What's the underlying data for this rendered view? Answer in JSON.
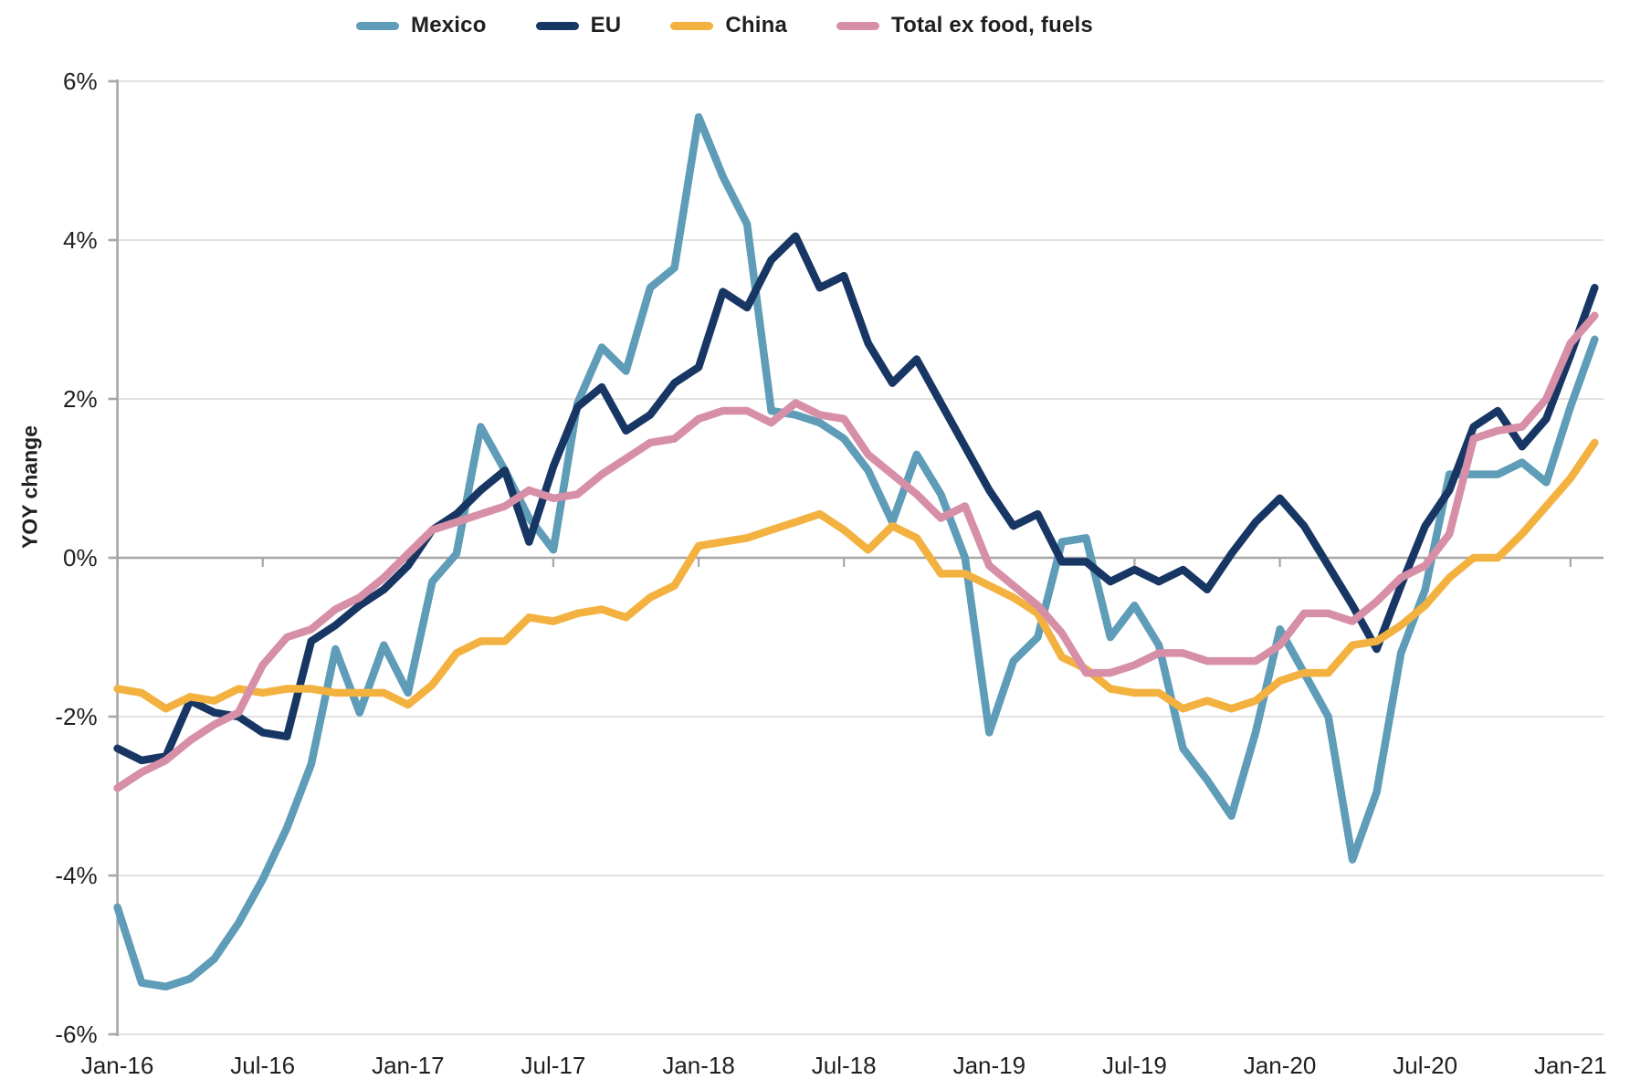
{
  "y_axis_title": "YOY change",
  "legend": {
    "items": [
      {
        "label": "Mexico",
        "color": "#5E9CB8"
      },
      {
        "label": "EU",
        "color": "#173663"
      },
      {
        "label": "China",
        "color": "#F3B13F"
      },
      {
        "label": "Total ex food, fuels",
        "color": "#D78FA8"
      }
    ]
  },
  "chart_data": {
    "type": "line",
    "title": "",
    "xlabel": "",
    "ylabel": "YOY change",
    "ylim": [
      -6,
      6
    ],
    "y_tick_step": 2,
    "y_tick_labels": [
      "6%",
      "4%",
      "2%",
      "0%",
      "-2%",
      "-4%",
      "-6%"
    ],
    "x_tick_labels": [
      "Jan-16",
      "Jul-16",
      "Jan-17",
      "Jul-17",
      "Jan-18",
      "Jul-18",
      "Jan-19",
      "Jul-19",
      "Jan-20",
      "Jul-20",
      "Jan-21"
    ],
    "grid": true,
    "legend_position": "top",
    "x": [
      "Jan-16",
      "Feb-16",
      "Mar-16",
      "Apr-16",
      "May-16",
      "Jun-16",
      "Jul-16",
      "Aug-16",
      "Sep-16",
      "Oct-16",
      "Nov-16",
      "Dec-16",
      "Jan-17",
      "Feb-17",
      "Mar-17",
      "Apr-17",
      "May-17",
      "Jun-17",
      "Jul-17",
      "Aug-17",
      "Sep-17",
      "Oct-17",
      "Nov-17",
      "Dec-17",
      "Jan-18",
      "Feb-18",
      "Mar-18",
      "Apr-18",
      "May-18",
      "Jun-18",
      "Jul-18",
      "Aug-18",
      "Sep-18",
      "Oct-18",
      "Nov-18",
      "Dec-18",
      "Jan-19",
      "Feb-19",
      "Mar-19",
      "Apr-19",
      "May-19",
      "Jun-19",
      "Jul-19",
      "Aug-19",
      "Sep-19",
      "Oct-19",
      "Nov-19",
      "Dec-19",
      "Jan-20",
      "Feb-20",
      "Mar-20",
      "Apr-20",
      "May-20",
      "Jun-20",
      "Jul-20",
      "Aug-20",
      "Sep-20",
      "Oct-20",
      "Nov-20",
      "Dec-20",
      "Jan-21",
      "Feb-21"
    ],
    "series": [
      {
        "name": "Mexico",
        "color": "#5E9CB8",
        "values": [
          -4.4,
          -5.35,
          -5.4,
          -5.3,
          -5.05,
          -4.6,
          -4.05,
          -3.4,
          -2.6,
          -1.15,
          -1.95,
          -1.1,
          -1.7,
          -0.3,
          0.05,
          1.65,
          1.1,
          0.5,
          0.1,
          1.95,
          2.65,
          2.35,
          3.4,
          3.65,
          5.55,
          4.8,
          4.2,
          1.85,
          1.8,
          1.7,
          1.5,
          1.1,
          0.45,
          1.3,
          0.8,
          0.0,
          -2.2,
          -1.3,
          -1.0,
          0.2,
          0.25,
          -1.0,
          -0.6,
          -1.1,
          -2.4,
          -2.8,
          -3.25,
          -2.2,
          -0.9,
          -1.45,
          -2.0,
          -3.8,
          -2.95,
          -1.2,
          -0.4,
          1.05,
          1.05,
          1.05,
          1.2,
          0.95,
          1.9,
          2.75
        ]
      },
      {
        "name": "EU",
        "color": "#173663",
        "values": [
          -2.4,
          -2.55,
          -2.5,
          -1.8,
          -1.95,
          -2.0,
          -2.2,
          -2.25,
          -1.05,
          -0.85,
          -0.6,
          -0.4,
          -0.1,
          0.35,
          0.55,
          0.85,
          1.1,
          0.2,
          1.15,
          1.9,
          2.15,
          1.6,
          1.8,
          2.2,
          2.4,
          3.35,
          3.15,
          3.75,
          4.05,
          3.4,
          3.55,
          2.7,
          2.2,
          2.5,
          1.95,
          1.4,
          0.85,
          0.4,
          0.55,
          -0.05,
          -0.05,
          -0.3,
          -0.15,
          -0.3,
          -0.15,
          -0.4,
          0.05,
          0.45,
          0.75,
          0.4,
          -0.1,
          -0.6,
          -1.15,
          -0.35,
          0.4,
          0.85,
          1.65,
          1.85,
          1.4,
          1.75,
          2.55,
          3.4
        ]
      },
      {
        "name": "China",
        "color": "#F3B13F",
        "values": [
          -1.65,
          -1.7,
          -1.9,
          -1.75,
          -1.8,
          -1.65,
          -1.7,
          -1.65,
          -1.65,
          -1.7,
          -1.7,
          -1.7,
          -1.85,
          -1.6,
          -1.2,
          -1.05,
          -1.05,
          -0.75,
          -0.8,
          -0.7,
          -0.65,
          -0.75,
          -0.5,
          -0.35,
          0.15,
          0.2,
          0.25,
          0.35,
          0.45,
          0.55,
          0.35,
          0.1,
          0.4,
          0.25,
          -0.2,
          -0.2,
          -0.35,
          -0.5,
          -0.7,
          -1.25,
          -1.4,
          -1.65,
          -1.7,
          -1.7,
          -1.9,
          -1.8,
          -1.9,
          -1.8,
          -1.55,
          -1.45,
          -1.45,
          -1.1,
          -1.05,
          -0.85,
          -0.6,
          -0.25,
          0.0,
          0.0,
          0.3,
          0.65,
          1.0,
          1.45
        ]
      },
      {
        "name": "Total ex food, fuels",
        "color": "#D78FA8",
        "values": [
          -2.9,
          -2.7,
          -2.55,
          -2.3,
          -2.1,
          -1.95,
          -1.35,
          -1.0,
          -0.9,
          -0.65,
          -0.5,
          -0.25,
          0.05,
          0.35,
          0.45,
          0.55,
          0.65,
          0.85,
          0.75,
          0.8,
          1.05,
          1.25,
          1.45,
          1.5,
          1.75,
          1.85,
          1.85,
          1.7,
          1.95,
          1.8,
          1.75,
          1.3,
          1.05,
          0.8,
          0.5,
          0.65,
          -0.1,
          -0.35,
          -0.6,
          -0.95,
          -1.45,
          -1.45,
          -1.35,
          -1.2,
          -1.2,
          -1.3,
          -1.3,
          -1.3,
          -1.1,
          -0.7,
          -0.7,
          -0.8,
          -0.55,
          -0.25,
          -0.1,
          0.3,
          1.5,
          1.6,
          1.65,
          2.0,
          2.7,
          3.05
        ]
      }
    ]
  },
  "style": {
    "gridline_color": "#D9D9D9",
    "axis_color": "#A6A6A6",
    "text_color": "#1f1f1f"
  }
}
